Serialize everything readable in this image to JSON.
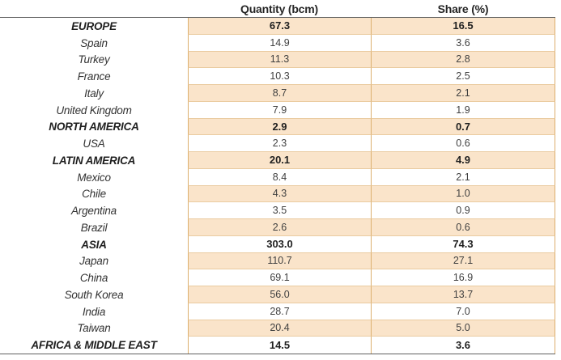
{
  "colors": {
    "peach_fill": "#FAE4CA",
    "vertical_border": "#DCAF6E",
    "horizontal_border": "#EACBA0",
    "dark_line": "#5F5F5F",
    "header_text": "#262626",
    "group_text": "#1F1F1F",
    "label_text": "#333333",
    "number_text": "#404040"
  },
  "chart_data": {
    "type": "table",
    "title": "",
    "columns": [
      "",
      "Quantity (bcm)",
      "Share (%)"
    ],
    "rows": [
      {
        "label": "EUROPE",
        "quantity": "67.3",
        "share": "16.5",
        "group": true
      },
      {
        "label": "Spain",
        "quantity": "14.9",
        "share": "3.6",
        "group": false
      },
      {
        "label": "Turkey",
        "quantity": "11.3",
        "share": "2.8",
        "group": false
      },
      {
        "label": "France",
        "quantity": "10.3",
        "share": "2.5",
        "group": false
      },
      {
        "label": "Italy",
        "quantity": "8.7",
        "share": "2.1",
        "group": false
      },
      {
        "label": "United Kingdom",
        "quantity": "7.9",
        "share": "1.9",
        "group": false
      },
      {
        "label": "NORTH AMERICA",
        "quantity": "2.9",
        "share": "0.7",
        "group": true
      },
      {
        "label": "USA",
        "quantity": "2.3",
        "share": "0.6",
        "group": false
      },
      {
        "label": "LATIN AMERICA",
        "quantity": "20.1",
        "share": "4.9",
        "group": true
      },
      {
        "label": "Mexico",
        "quantity": "8.4",
        "share": "2.1",
        "group": false
      },
      {
        "label": "Chile",
        "quantity": "4.3",
        "share": "1.0",
        "group": false
      },
      {
        "label": "Argentina",
        "quantity": "3.5",
        "share": "0.9",
        "group": false
      },
      {
        "label": "Brazil",
        "quantity": "2.6",
        "share": "0.6",
        "group": false
      },
      {
        "label": "ASIA",
        "quantity": "303.0",
        "share": "74.3",
        "group": true
      },
      {
        "label": "Japan",
        "quantity": "110.7",
        "share": "27.1",
        "group": false
      },
      {
        "label": "China",
        "quantity": "69.1",
        "share": "16.9",
        "group": false
      },
      {
        "label": "South Korea",
        "quantity": "56.0",
        "share": "13.7",
        "group": false
      },
      {
        "label": "India",
        "quantity": "28.7",
        "share": "7.0",
        "group": false
      },
      {
        "label": "Taiwan",
        "quantity": "20.4",
        "share": "5.0",
        "group": false
      },
      {
        "label": "AFRICA & MIDDLE EAST",
        "quantity": "14.5",
        "share": "3.6",
        "group": true
      }
    ]
  }
}
